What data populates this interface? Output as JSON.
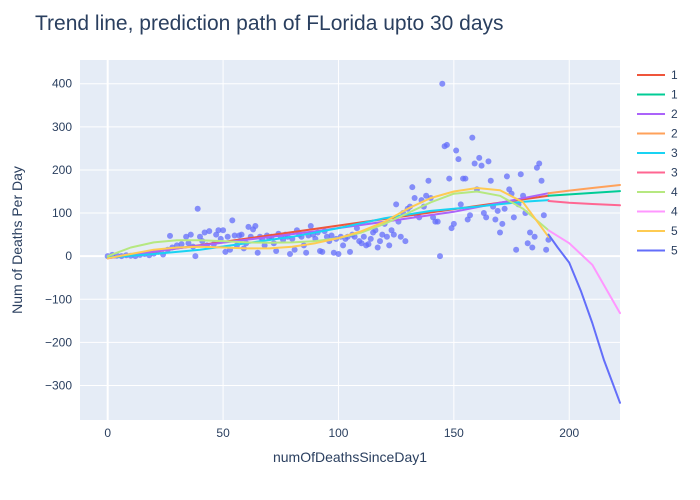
{
  "chart_data": {
    "type": "scatter",
    "title": "Trend line, prediction path of FLorida upto 30 days",
    "xlabel": "numOfDeathsSinceDay1",
    "ylabel": "Num of Deaths Per Day",
    "xlim": [
      -12,
      222
    ],
    "ylim": [
      -380,
      455
    ],
    "x_ticks": [
      0,
      50,
      100,
      150,
      200
    ],
    "y_ticks": [
      -300,
      -200,
      -100,
      0,
      100,
      200,
      300,
      400
    ],
    "grid": true,
    "plot_bgcolor": "#e5ecf6",
    "legend_position": "right",
    "scatter": {
      "color": "#636efa",
      "points": [
        [
          0,
          0
        ],
        [
          2,
          3
        ],
        [
          4,
          1
        ],
        [
          6,
          0
        ],
        [
          8,
          2
        ],
        [
          10,
          1
        ],
        [
          12,
          0
        ],
        [
          14,
          3
        ],
        [
          16,
          5
        ],
        [
          18,
          2
        ],
        [
          20,
          6
        ],
        [
          22,
          10
        ],
        [
          24,
          4
        ],
        [
          26,
          15
        ],
        [
          27,
          47
        ],
        [
          28,
          20
        ],
        [
          30,
          25
        ],
        [
          32,
          28
        ],
        [
          34,
          45
        ],
        [
          35,
          30
        ],
        [
          36,
          50
        ],
        [
          37,
          22
        ],
        [
          38,
          0
        ],
        [
          39,
          110
        ],
        [
          40,
          45
        ],
        [
          41,
          35
        ],
        [
          42,
          55
        ],
        [
          43,
          25
        ],
        [
          44,
          58
        ],
        [
          46,
          28
        ],
        [
          47,
          50
        ],
        [
          48,
          60
        ],
        [
          49,
          40
        ],
        [
          50,
          60
        ],
        [
          51,
          10
        ],
        [
          52,
          45
        ],
        [
          53,
          15
        ],
        [
          54,
          83
        ],
        [
          55,
          48
        ],
        [
          56,
          25
        ],
        [
          57,
          48
        ],
        [
          58,
          50
        ],
        [
          59,
          18
        ],
        [
          60,
          30
        ],
        [
          61,
          68
        ],
        [
          62,
          45
        ],
        [
          63,
          62
        ],
        [
          64,
          70
        ],
        [
          65,
          8
        ],
        [
          66,
          45
        ],
        [
          67,
          38
        ],
        [
          68,
          25
        ],
        [
          69,
          48
        ],
        [
          70,
          42
        ],
        [
          71,
          45
        ],
        [
          72,
          30
        ],
        [
          73,
          12
        ],
        [
          74,
          52
        ],
        [
          75,
          45
        ],
        [
          76,
          38
        ],
        [
          77,
          50
        ],
        [
          78,
          45
        ],
        [
          79,
          5
        ],
        [
          80,
          40
        ],
        [
          81,
          15
        ],
        [
          82,
          60
        ],
        [
          83,
          50
        ],
        [
          84,
          45
        ],
        [
          85,
          25
        ],
        [
          86,
          8
        ],
        [
          87,
          48
        ],
        [
          88,
          70
        ],
        [
          89,
          50
        ],
        [
          90,
          40
        ],
        [
          91,
          55
        ],
        [
          92,
          12
        ],
        [
          93,
          10
        ],
        [
          94,
          58
        ],
        [
          95,
          45
        ],
        [
          96,
          35
        ],
        [
          97,
          48
        ],
        [
          98,
          8
        ],
        [
          99,
          40
        ],
        [
          100,
          5
        ],
        [
          101,
          45
        ],
        [
          102,
          25
        ],
        [
          103,
          40
        ],
        [
          104,
          45
        ],
        [
          105,
          10
        ],
        [
          106,
          50
        ],
        [
          107,
          45
        ],
        [
          108,
          65
        ],
        [
          109,
          35
        ],
        [
          110,
          30
        ],
        [
          111,
          45
        ],
        [
          112,
          25
        ],
        [
          113,
          28
        ],
        [
          114,
          40
        ],
        [
          115,
          55
        ],
        [
          116,
          60
        ],
        [
          117,
          20
        ],
        [
          118,
          35
        ],
        [
          119,
          50
        ],
        [
          120,
          75
        ],
        [
          121,
          45
        ],
        [
          122,
          25
        ],
        [
          123,
          60
        ],
        [
          124,
          50
        ],
        [
          125,
          120
        ],
        [
          126,
          80
        ],
        [
          127,
          45
        ],
        [
          128,
          100
        ],
        [
          129,
          35
        ],
        [
          130,
          110
        ],
        [
          131,
          115
        ],
        [
          132,
          160
        ],
        [
          133,
          135
        ],
        [
          134,
          95
        ],
        [
          135,
          90
        ],
        [
          136,
          130
        ],
        [
          137,
          115
        ],
        [
          138,
          140
        ],
        [
          139,
          175
        ],
        [
          140,
          135
        ],
        [
          141,
          90
        ],
        [
          142,
          80
        ],
        [
          143,
          80
        ],
        [
          144,
          0
        ],
        [
          145,
          400
        ],
        [
          146,
          255
        ],
        [
          147,
          258
        ],
        [
          148,
          180
        ],
        [
          149,
          65
        ],
        [
          150,
          75
        ],
        [
          151,
          245
        ],
        [
          152,
          225
        ],
        [
          153,
          120
        ],
        [
          154,
          180
        ],
        [
          155,
          180
        ],
        [
          156,
          85
        ],
        [
          157,
          95
        ],
        [
          158,
          275
        ],
        [
          159,
          215
        ],
        [
          160,
          155
        ],
        [
          161,
          228
        ],
        [
          162,
          210
        ],
        [
          163,
          100
        ],
        [
          164,
          90
        ],
        [
          165,
          220
        ],
        [
          166,
          175
        ],
        [
          167,
          115
        ],
        [
          168,
          85
        ],
        [
          169,
          105
        ],
        [
          170,
          55
        ],
        [
          171,
          75
        ],
        [
          172,
          110
        ],
        [
          173,
          185
        ],
        [
          174,
          155
        ],
        [
          175,
          145
        ],
        [
          176,
          90
        ],
        [
          177,
          15
        ],
        [
          178,
          120
        ],
        [
          179,
          190
        ],
        [
          180,
          140
        ],
        [
          181,
          100
        ],
        [
          182,
          30
        ],
        [
          183,
          55
        ],
        [
          184,
          20
        ],
        [
          185,
          45
        ],
        [
          186,
          205
        ],
        [
          187,
          215
        ],
        [
          188,
          175
        ],
        [
          189,
          95
        ],
        [
          190,
          15
        ],
        [
          191,
          38
        ]
      ]
    },
    "series": [
      {
        "name": "1",
        "color": "#ef553b",
        "x": [
          0,
          191
        ],
        "y": [
          -5,
          140
        ]
      },
      {
        "name": "1",
        "color": "#00cc96",
        "x": [
          191,
          222
        ],
        "y": [
          140,
          151
        ]
      },
      {
        "name": "2",
        "color": "#ab63fa",
        "x": [
          0,
          30,
          60,
          90,
          120,
          150,
          191
        ],
        "y": [
          -5,
          18,
          38,
          58,
          80,
          103,
          146
        ]
      },
      {
        "name": "2",
        "color": "#ffa15a",
        "x": [
          191,
          200,
          210,
          222
        ],
        "y": [
          146,
          152,
          158,
          165
        ]
      },
      {
        "name": "3",
        "color": "#19d3f3",
        "x": [
          0,
          20,
          40,
          60,
          80,
          100,
          120,
          140,
          160,
          180,
          191
        ],
        "y": [
          -3,
          5,
          15,
          30,
          45,
          65,
          88,
          105,
          115,
          126,
          130
        ]
      },
      {
        "name": "3",
        "color": "#ff6692",
        "x": [
          191,
          200,
          210,
          222
        ],
        "y": [
          128,
          124,
          121,
          118
        ]
      },
      {
        "name": "4",
        "color": "#b6e880",
        "x": [
          0,
          10,
          20,
          30,
          40,
          50,
          60,
          70,
          80,
          90,
          100,
          110,
          120,
          130,
          140,
          150,
          160,
          170,
          180,
          191
        ],
        "y": [
          0,
          20,
          32,
          37,
          37,
          35,
          32,
          31,
          32,
          35,
          42,
          55,
          75,
          100,
          125,
          145,
          150,
          140,
          110,
          60
        ]
      },
      {
        "name": "4",
        "color": "#ff97ff",
        "x": [
          191,
          200,
          210,
          222
        ],
        "y": [
          60,
          30,
          -20,
          -132
        ]
      },
      {
        "name": "5",
        "color": "#fecb52",
        "x": [
          0,
          10,
          20,
          30,
          40,
          50,
          60,
          70,
          80,
          90,
          100,
          110,
          120,
          130,
          140,
          150,
          160,
          170,
          180,
          191
        ],
        "y": [
          -5,
          5,
          15,
          20,
          22,
          20,
          18,
          18,
          22,
          30,
          42,
          58,
          80,
          110,
          135,
          150,
          158,
          153,
          125,
          45
        ]
      },
      {
        "name": "5",
        "color": "#636efa",
        "x": [
          191,
          195,
          200,
          205,
          210,
          215,
          222
        ],
        "y": [
          50,
          20,
          -15,
          -80,
          -155,
          -240,
          -340
        ]
      }
    ]
  }
}
